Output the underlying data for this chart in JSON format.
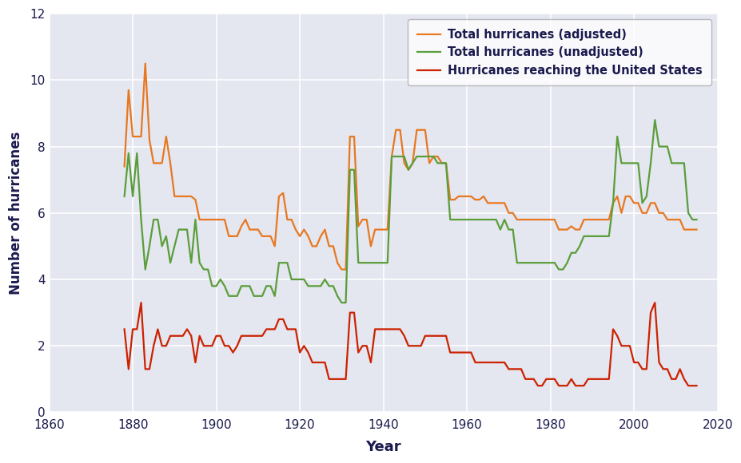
{
  "title": "",
  "xlabel": "Year",
  "ylabel": "Number of hurricanes",
  "xlim": [
    1860,
    2020
  ],
  "ylim": [
    0,
    12
  ],
  "yticks": [
    0,
    2,
    4,
    6,
    8,
    10,
    12
  ],
  "xticks": [
    1860,
    1880,
    1900,
    1920,
    1940,
    1960,
    1980,
    2000,
    2020
  ],
  "plot_bg_color": "#e4e6f0",
  "fig_bg_color": "#ffffff",
  "grid_color": "#ffffff",
  "adjusted_color": "#e87820",
  "unadjusted_color": "#5a9e3a",
  "us_color": "#cc2200",
  "legend_labels": [
    "Total hurricanes (adjusted)",
    "Total hurricanes (unadjusted)",
    "Hurricanes reaching the United States"
  ],
  "years": [
    1878,
    1879,
    1880,
    1881,
    1882,
    1883,
    1884,
    1885,
    1886,
    1887,
    1888,
    1889,
    1890,
    1891,
    1892,
    1893,
    1894,
    1895,
    1896,
    1897,
    1898,
    1899,
    1900,
    1901,
    1902,
    1903,
    1904,
    1905,
    1906,
    1907,
    1908,
    1909,
    1910,
    1911,
    1912,
    1913,
    1914,
    1915,
    1916,
    1917,
    1918,
    1919,
    1920,
    1921,
    1922,
    1923,
    1924,
    1925,
    1926,
    1927,
    1928,
    1929,
    1930,
    1931,
    1932,
    1933,
    1934,
    1935,
    1936,
    1937,
    1938,
    1939,
    1940,
    1941,
    1942,
    1943,
    1944,
    1945,
    1946,
    1947,
    1948,
    1949,
    1950,
    1951,
    1952,
    1953,
    1954,
    1955,
    1956,
    1957,
    1958,
    1959,
    1960,
    1961,
    1962,
    1963,
    1964,
    1965,
    1966,
    1967,
    1968,
    1969,
    1970,
    1971,
    1972,
    1973,
    1974,
    1975,
    1976,
    1977,
    1978,
    1979,
    1980,
    1981,
    1982,
    1983,
    1984,
    1985,
    1986,
    1987,
    1988,
    1989,
    1990,
    1991,
    1992,
    1993,
    1994,
    1995,
    1996,
    1997,
    1998,
    1999,
    2000,
    2001,
    2002,
    2003,
    2004,
    2005,
    2006,
    2007,
    2008,
    2009,
    2010,
    2011,
    2012,
    2013,
    2014,
    2015
  ],
  "adjusted": [
    7.4,
    9.7,
    8.3,
    8.3,
    8.3,
    10.5,
    8.2,
    7.5,
    7.5,
    7.5,
    8.3,
    7.5,
    6.5,
    6.5,
    6.5,
    6.5,
    6.5,
    6.4,
    5.8,
    5.8,
    5.8,
    5.8,
    5.8,
    5.8,
    5.8,
    5.3,
    5.3,
    5.3,
    5.6,
    5.8,
    5.5,
    5.5,
    5.5,
    5.3,
    5.3,
    5.3,
    5.0,
    6.5,
    6.6,
    5.8,
    5.8,
    5.5,
    5.3,
    5.5,
    5.3,
    5.0,
    5.0,
    5.3,
    5.5,
    5.0,
    5.0,
    4.5,
    4.3,
    4.3,
    8.3,
    8.3,
    5.6,
    5.8,
    5.8,
    5.0,
    5.5,
    5.5,
    5.5,
    5.5,
    7.7,
    8.5,
    8.5,
    7.5,
    7.3,
    7.5,
    8.5,
    8.5,
    8.5,
    7.5,
    7.7,
    7.7,
    7.5,
    7.5,
    6.4,
    6.4,
    6.5,
    6.5,
    6.5,
    6.5,
    6.4,
    6.4,
    6.5,
    6.3,
    6.3,
    6.3,
    6.3,
    6.3,
    6.0,
    6.0,
    5.8,
    5.8,
    5.8,
    5.8,
    5.8,
    5.8,
    5.8,
    5.8,
    5.8,
    5.8,
    5.5,
    5.5,
    5.5,
    5.6,
    5.5,
    5.5,
    5.8,
    5.8,
    5.8,
    5.8,
    5.8,
    5.8,
    5.8,
    6.3,
    6.5,
    6.0,
    6.5,
    6.5,
    6.3,
    6.3,
    6.0,
    6.0,
    6.3,
    6.3,
    6.0,
    6.0,
    5.8,
    5.8,
    5.8,
    5.8,
    5.5,
    5.5,
    5.5,
    5.5
  ],
  "unadjusted": [
    6.5,
    7.8,
    6.5,
    7.8,
    5.8,
    4.3,
    5.0,
    5.8,
    5.8,
    5.0,
    5.3,
    4.5,
    5.0,
    5.5,
    5.5,
    5.5,
    4.5,
    5.8,
    4.5,
    4.3,
    4.3,
    3.8,
    3.8,
    4.0,
    3.8,
    3.5,
    3.5,
    3.5,
    3.8,
    3.8,
    3.8,
    3.5,
    3.5,
    3.5,
    3.8,
    3.8,
    3.5,
    4.5,
    4.5,
    4.5,
    4.0,
    4.0,
    4.0,
    4.0,
    3.8,
    3.8,
    3.8,
    3.8,
    4.0,
    3.8,
    3.8,
    3.5,
    3.3,
    3.3,
    7.3,
    7.3,
    4.5,
    4.5,
    4.5,
    4.5,
    4.5,
    4.5,
    4.5,
    4.5,
    7.7,
    7.7,
    7.7,
    7.7,
    7.3,
    7.5,
    7.7,
    7.7,
    7.7,
    7.7,
    7.7,
    7.5,
    7.5,
    7.5,
    5.8,
    5.8,
    5.8,
    5.8,
    5.8,
    5.8,
    5.8,
    5.8,
    5.8,
    5.8,
    5.8,
    5.8,
    5.5,
    5.8,
    5.5,
    5.5,
    4.5,
    4.5,
    4.5,
    4.5,
    4.5,
    4.5,
    4.5,
    4.5,
    4.5,
    4.5,
    4.3,
    4.3,
    4.5,
    4.8,
    4.8,
    5.0,
    5.3,
    5.3,
    5.3,
    5.3,
    5.3,
    5.3,
    5.3,
    6.3,
    8.3,
    7.5,
    7.5,
    7.5,
    7.5,
    7.5,
    6.3,
    6.5,
    7.5,
    8.8,
    8.0,
    8.0,
    8.0,
    7.5,
    7.5,
    7.5,
    7.5,
    6.0,
    5.8,
    5.8
  ],
  "us_landfalls": [
    2.5,
    1.3,
    2.5,
    2.5,
    3.3,
    1.3,
    1.3,
    2.0,
    2.5,
    2.0,
    2.0,
    2.3,
    2.3,
    2.3,
    2.3,
    2.5,
    2.3,
    1.5,
    2.3,
    2.0,
    2.0,
    2.0,
    2.3,
    2.3,
    2.0,
    2.0,
    1.8,
    2.0,
    2.3,
    2.3,
    2.3,
    2.3,
    2.3,
    2.3,
    2.5,
    2.5,
    2.5,
    2.8,
    2.8,
    2.5,
    2.5,
    2.5,
    1.8,
    2.0,
    1.8,
    1.5,
    1.5,
    1.5,
    1.5,
    1.0,
    1.0,
    1.0,
    1.0,
    1.0,
    3.0,
    3.0,
    1.8,
    2.0,
    2.0,
    1.5,
    2.5,
    2.5,
    2.5,
    2.5,
    2.5,
    2.5,
    2.5,
    2.3,
    2.0,
    2.0,
    2.0,
    2.0,
    2.3,
    2.3,
    2.3,
    2.3,
    2.3,
    2.3,
    1.8,
    1.8,
    1.8,
    1.8,
    1.8,
    1.8,
    1.5,
    1.5,
    1.5,
    1.5,
    1.5,
    1.5,
    1.5,
    1.5,
    1.3,
    1.3,
    1.3,
    1.3,
    1.0,
    1.0,
    1.0,
    0.8,
    0.8,
    1.0,
    1.0,
    1.0,
    0.8,
    0.8,
    0.8,
    1.0,
    0.8,
    0.8,
    0.8,
    1.0,
    1.0,
    1.0,
    1.0,
    1.0,
    1.0,
    2.5,
    2.3,
    2.0,
    2.0,
    2.0,
    1.5,
    1.5,
    1.3,
    1.3,
    3.0,
    3.3,
    1.5,
    1.3,
    1.3,
    1.0,
    1.0,
    1.3,
    1.0,
    0.8,
    0.8,
    0.8
  ]
}
